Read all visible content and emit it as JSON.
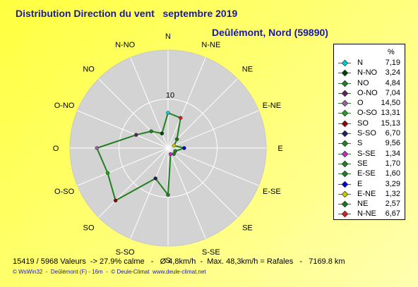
{
  "title": "Distribution Direction du vent   septembre 2019",
  "subtitle": "Deûlémont, Nord (59890)",
  "stats_line": "15419 / 5968 Valeurs  -> 27.9% calme   -   Ø 4,8km/h  -  Max. 48,3km/h = Rafales   -   7169.8 km",
  "footer": "© WsWin32  -  Deûlémont (F) - 16m  -  © Deule-Climat  www.deule-climat.net",
  "colors": {
    "background": "#ffff66",
    "title": "#1a1aa0",
    "rose_fill": "#d3d3d3",
    "series_line": "#208020"
  },
  "chart_data": {
    "type": "radar",
    "title": "Distribution Direction du vent   septembre 2019",
    "unit": "%",
    "ring_label": "10",
    "rlim": [
      0,
      20
    ],
    "grid": true,
    "legend_placement": "right",
    "directions": [
      "N",
      "N-NE",
      "NE",
      "E-NE",
      "E",
      "E-SE",
      "SE",
      "S-SE",
      "S",
      "S-SO",
      "SO",
      "O-SO",
      "O",
      "O-NO",
      "NO",
      "N-NO"
    ],
    "values": [
      7.19,
      6.67,
      2.57,
      1.32,
      3.29,
      1.6,
      1.7,
      1.34,
      9.56,
      6.7,
      15.13,
      13.31,
      14.5,
      7.04,
      4.84,
      3.24
    ],
    "marker_colors": [
      "#00cccc",
      "#cc2222",
      "#207020",
      "#cccc00",
      "#0000cc",
      "#208020",
      "#208020",
      "#cc22cc",
      "#208020",
      "#202060",
      "#8b0000",
      "#20a020",
      "#a060a0",
      "#602060",
      "#208020",
      "#004000"
    ],
    "legend": [
      {
        "name": "N",
        "value": "7,19",
        "color": "#00cccc"
      },
      {
        "name": "N-NO",
        "value": "3,24",
        "color": "#004000"
      },
      {
        "name": "NO",
        "value": "4,84",
        "color": "#208020"
      },
      {
        "name": "O-NO",
        "value": "7,04",
        "color": "#602060"
      },
      {
        "name": "O",
        "value": "14,50",
        "color": "#a060a0"
      },
      {
        "name": "O-SO",
        "value": "13,31",
        "color": "#20a020"
      },
      {
        "name": "SO",
        "value": "15,13",
        "color": "#8b0000"
      },
      {
        "name": "S-SO",
        "value": "6,70",
        "color": "#202060"
      },
      {
        "name": "S",
        "value": "9,56",
        "color": "#208020"
      },
      {
        "name": "S-SE",
        "value": "1,34",
        "color": "#cc22cc"
      },
      {
        "name": "SE",
        "value": "1,70",
        "color": "#208020"
      },
      {
        "name": "E-SE",
        "value": "1,60",
        "color": "#208020"
      },
      {
        "name": "E",
        "value": "3,29",
        "color": "#0000cc"
      },
      {
        "name": "E-NE",
        "value": "1,32",
        "color": "#cccc00"
      },
      {
        "name": "NE",
        "value": "2,57",
        "color": "#207020"
      },
      {
        "name": "N-NE",
        "value": "6,67",
        "color": "#cc2222"
      }
    ]
  }
}
